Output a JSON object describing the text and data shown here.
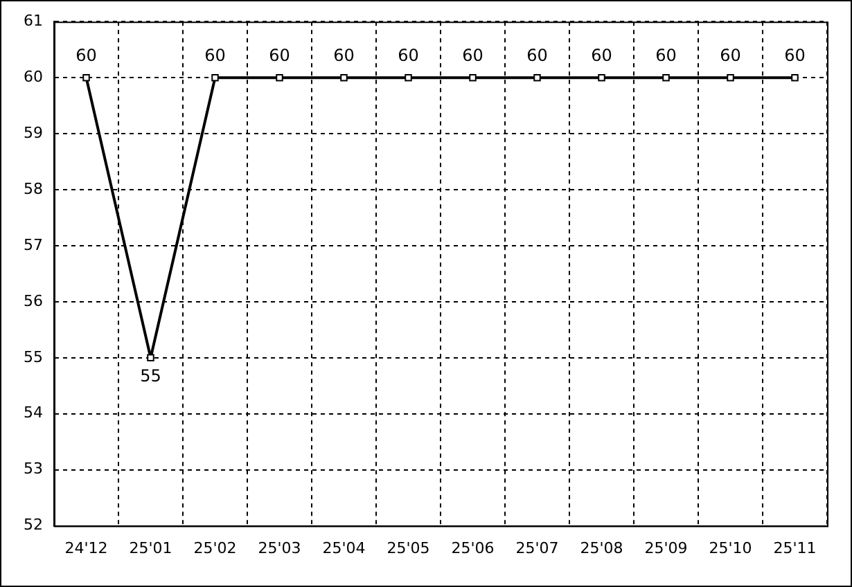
{
  "chart_data": {
    "type": "line",
    "categories": [
      "24'12",
      "25'01",
      "25'02",
      "25'03",
      "25'04",
      "25'05",
      "25'06",
      "25'07",
      "25'08",
      "25'09",
      "25'10",
      "25'11"
    ],
    "series": [
      {
        "color": "#000000",
        "values": [
          60,
          55,
          60,
          60,
          60,
          60,
          60,
          60,
          60,
          60,
          60,
          60
        ]
      }
    ],
    "ylim": [
      52,
      61
    ],
    "yticks": [
      52,
      53,
      54,
      55,
      56,
      57,
      58,
      59,
      60,
      61
    ],
    "grid": true,
    "legend": false,
    "marker": "square",
    "line_style": "solid",
    "data_labels": true
  }
}
